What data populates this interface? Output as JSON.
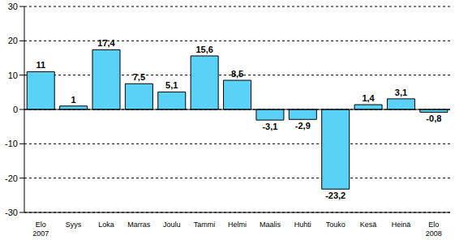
{
  "chart_data": {
    "type": "bar",
    "categories": [
      "Elo 2007",
      "Syys",
      "Loka",
      "Marras",
      "Joulu",
      "Tammi",
      "Helmi",
      "Maalis",
      "Huhti",
      "Touko",
      "Kesä",
      "Heinä",
      "Elo 2008"
    ],
    "values": [
      11,
      1,
      17.4,
      7.5,
      5.1,
      15.6,
      8.5,
      -3.1,
      -2.9,
      -23.2,
      1.4,
      3.1,
      -0.8
    ],
    "value_labels": [
      "11",
      "1",
      "17,4",
      "7,5",
      "5,1",
      "15,6",
      "8,5",
      "-3,1",
      "-2,9",
      "-23,2",
      "1,4",
      "3,1",
      "-0,8"
    ],
    "color": "#5ad2f8",
    "ylim": [
      -30,
      30
    ],
    "yticks": [
      -30,
      -20,
      -10,
      0,
      10,
      20,
      30
    ],
    "grid": true,
    "data_labels": true
  }
}
